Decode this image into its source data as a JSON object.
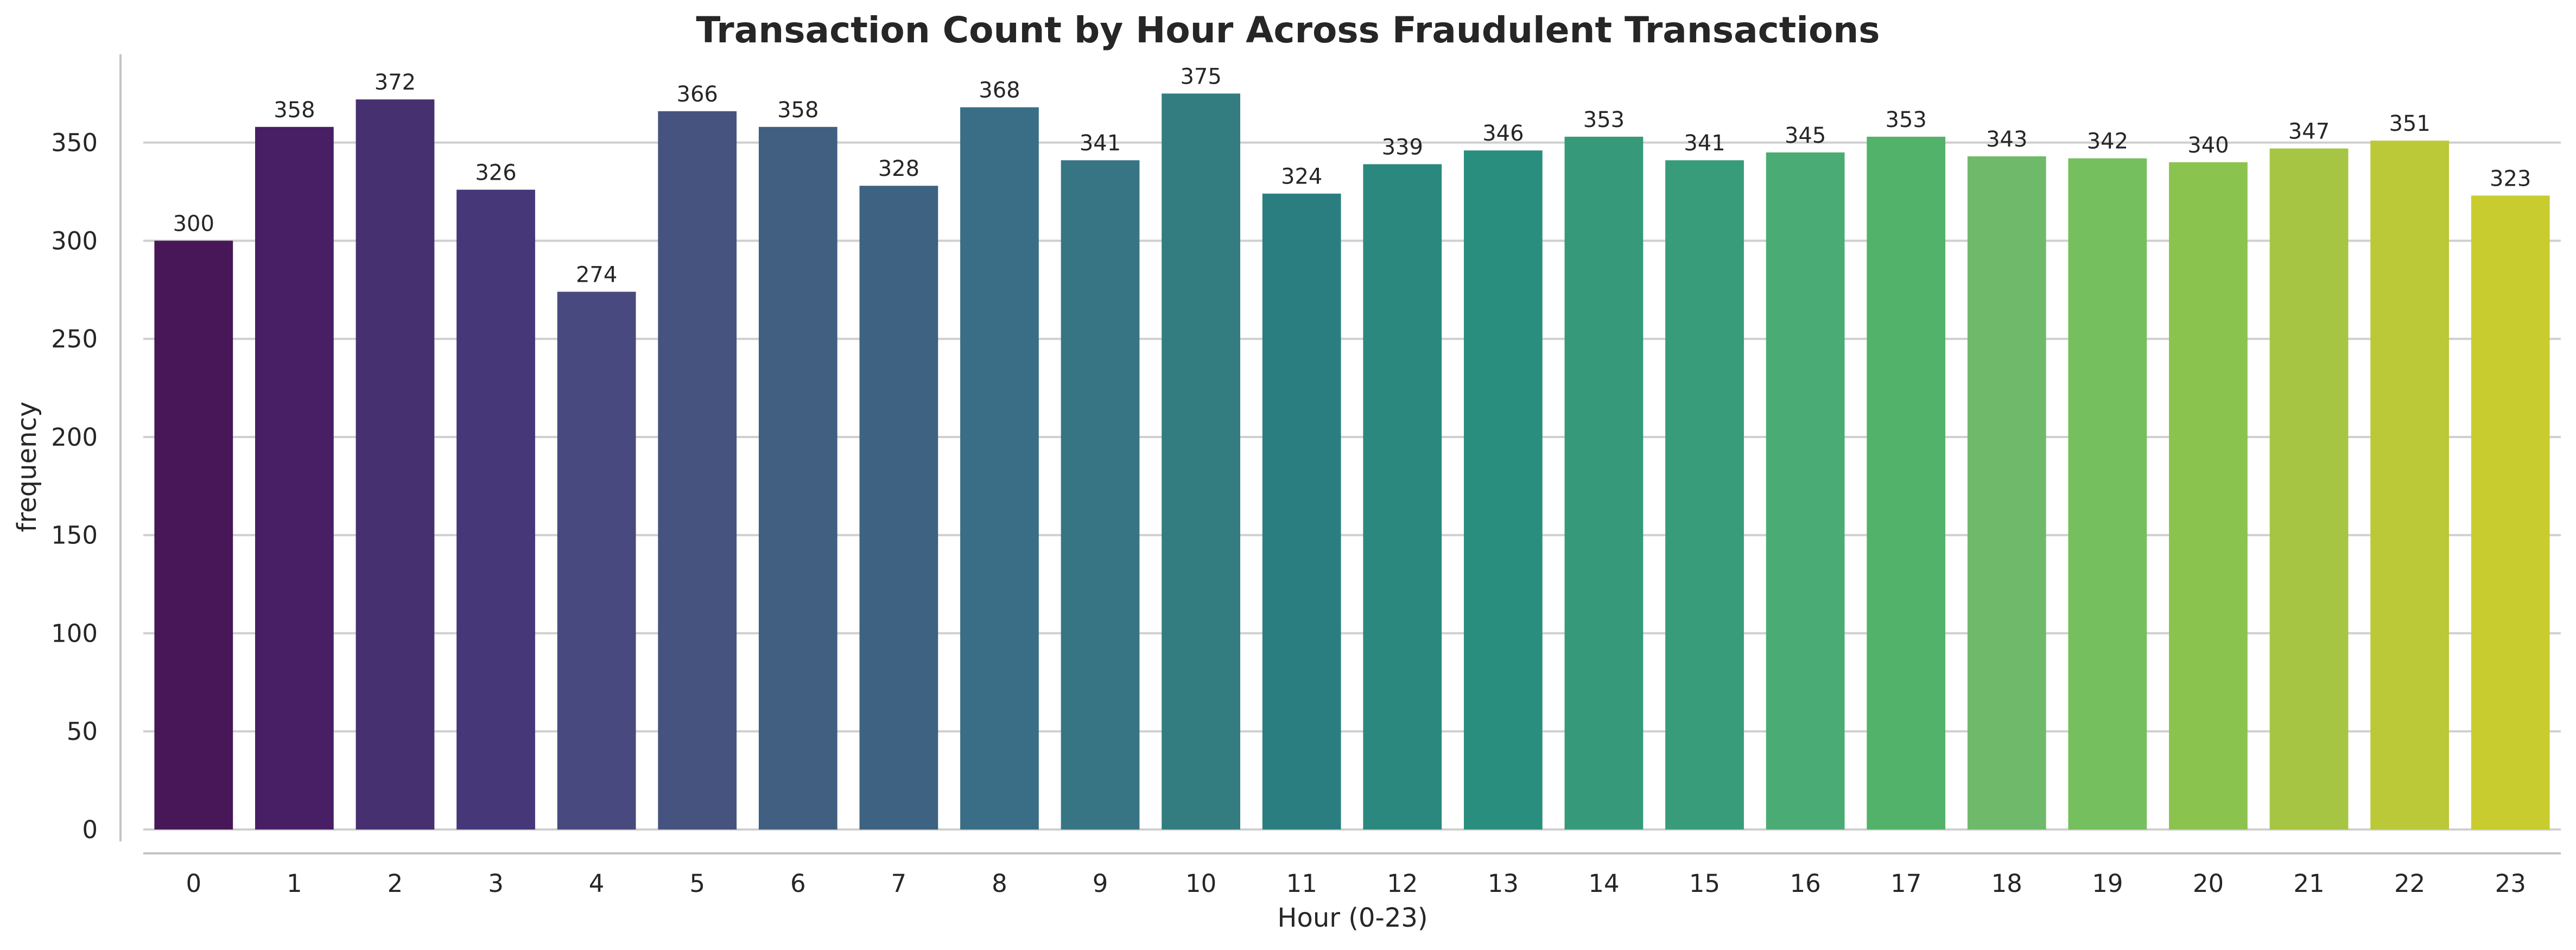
{
  "chart_data": {
    "type": "bar",
    "title": "Transaction Count by Hour Across Fraudulent Transactions",
    "xlabel": "Hour (0-23)",
    "ylabel": "frequency",
    "categories": [
      "0",
      "1",
      "2",
      "3",
      "4",
      "5",
      "6",
      "7",
      "8",
      "9",
      "10",
      "11",
      "12",
      "13",
      "14",
      "15",
      "16",
      "17",
      "18",
      "19",
      "20",
      "21",
      "22",
      "23"
    ],
    "values": [
      300,
      358,
      372,
      326,
      274,
      366,
      358,
      328,
      368,
      341,
      375,
      324,
      339,
      346,
      353,
      341,
      345,
      353,
      343,
      342,
      340,
      347,
      351,
      323
    ],
    "data_labels": [
      "300",
      "358",
      "372",
      "326",
      "274",
      "366",
      "358",
      "328",
      "368",
      "341",
      "375",
      "324",
      "339",
      "346",
      "353",
      "341",
      "345",
      "353",
      "343",
      "342",
      "340",
      "347",
      "351",
      "323"
    ],
    "ylim": [
      0,
      395
    ],
    "yticks": [
      0,
      50,
      100,
      150,
      200,
      250,
      300,
      350
    ],
    "ytick_labels": [
      "0",
      "50",
      "100",
      "150",
      "200",
      "250",
      "300",
      "350"
    ],
    "grid": "horizontal",
    "palette": "viridis",
    "colors": [
      "#471757",
      "#481f65",
      "#463070",
      "#453778",
      "#48497e",
      "#45537e",
      "#405f81",
      "#3e6281",
      "#3a6e86",
      "#377585",
      "#337d81",
      "#2a7e80",
      "#2b887e",
      "#2a8e7e",
      "#36997a",
      "#389b7a",
      "#4aac74",
      "#53b269",
      "#6fba6a",
      "#76bf5e",
      "#8bc34f",
      "#a6c542",
      "#bbc837",
      "#c9cc2f"
    ]
  }
}
